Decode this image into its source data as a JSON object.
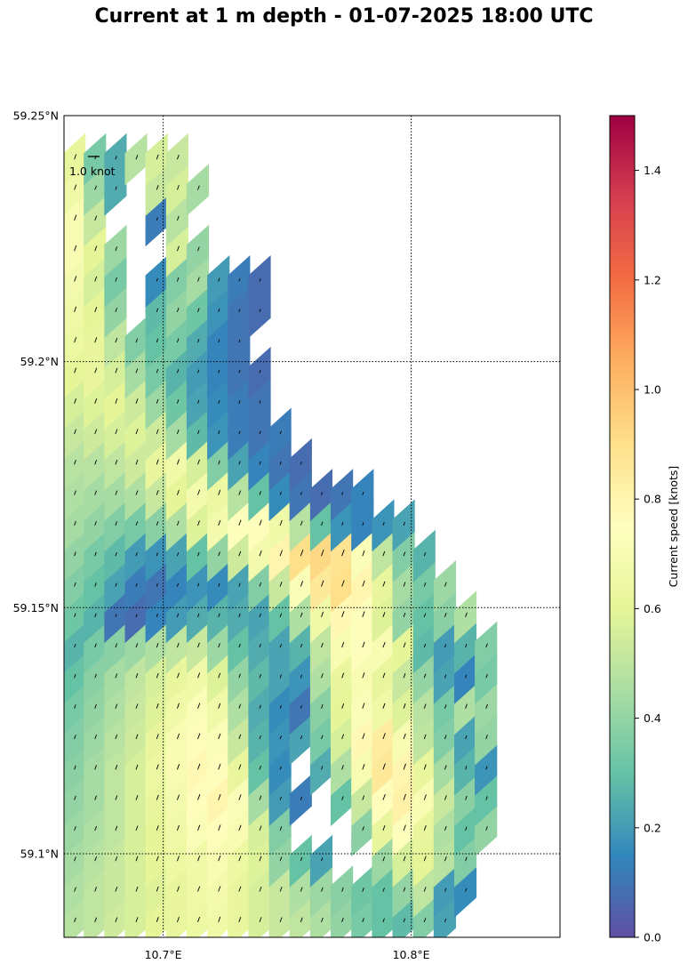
{
  "chart_data": {
    "type": "heatmap",
    "title": "Current at 1 m depth - 01-07-2025 18:00 UTC",
    "xlim": [
      10.66,
      10.86
    ],
    "ylim": [
      59.083,
      59.25
    ],
    "x_ticks": [
      {
        "value": 10.7,
        "label": "10.7°E"
      },
      {
        "value": 10.8,
        "label": "10.8°E"
      }
    ],
    "y_ticks": [
      {
        "value": 59.1,
        "label": "59.1°N"
      },
      {
        "value": 59.15,
        "label": "59.15°N"
      },
      {
        "value": 59.2,
        "label": "59.2°N"
      },
      {
        "value": 59.25,
        "label": "59.25°N"
      }
    ],
    "grid": true,
    "grid_style": "dotted",
    "quiver_key": {
      "label": "1.0 knot",
      "value": 1.0
    },
    "colorbar": {
      "label": "Current speed [knots]",
      "range": [
        0,
        1.5
      ],
      "ticks": [
        0.0,
        0.2,
        0.4,
        0.6,
        0.8,
        1.0,
        1.2,
        1.4
      ],
      "tick_labels": [
        "0.0",
        "0.2",
        "0.4",
        "0.6",
        "0.8",
        "1.0",
        "1.2",
        "1.4"
      ],
      "colormap": "Spectral_r"
    },
    "grid_cells": {
      "lon_start": 10.66,
      "lon_step": 0.0083,
      "lat_start": 59.083,
      "lat_step": 0.0062,
      "rows_bottom_to_top": [
        [
          0.48,
          0.5,
          0.54,
          0.56,
          0.6,
          0.62,
          0.64,
          0.66,
          0.62,
          0.56,
          0.52,
          0.5,
          0.46,
          0.4,
          0.34,
          0.3,
          0.28,
          0.36,
          0.22,
          null,
          null,
          null,
          null,
          null,
          null
        ],
        [
          0.46,
          0.5,
          0.52,
          0.56,
          0.58,
          0.62,
          0.66,
          0.68,
          0.62,
          0.56,
          0.52,
          0.46,
          0.42,
          0.38,
          0.32,
          0.3,
          0.4,
          0.5,
          0.2,
          0.16,
          null,
          null,
          null,
          null,
          null
        ],
        [
          0.44,
          0.48,
          0.52,
          0.56,
          0.6,
          0.64,
          0.66,
          0.7,
          0.64,
          0.58,
          0.4,
          0.3,
          0.22,
          null,
          null,
          0.42,
          0.56,
          0.6,
          0.48,
          0.36,
          null,
          null,
          null,
          null,
          null
        ],
        [
          0.42,
          0.46,
          0.5,
          0.56,
          0.6,
          0.66,
          0.72,
          0.76,
          0.7,
          0.56,
          0.36,
          null,
          null,
          null,
          0.38,
          0.62,
          0.74,
          0.62,
          0.46,
          0.3,
          0.4,
          null,
          null,
          null,
          null
        ],
        [
          0.4,
          0.44,
          0.5,
          0.56,
          0.62,
          0.68,
          0.76,
          0.8,
          0.72,
          0.44,
          0.2,
          0.12,
          null,
          0.3,
          0.52,
          0.76,
          0.82,
          0.7,
          0.52,
          0.38,
          0.3,
          null,
          null,
          null,
          null
        ],
        [
          0.38,
          0.44,
          0.5,
          0.56,
          0.64,
          0.7,
          0.78,
          0.76,
          0.62,
          0.3,
          0.16,
          null,
          0.24,
          0.46,
          0.7,
          0.86,
          0.8,
          0.62,
          0.44,
          0.26,
          0.18,
          null,
          null,
          null,
          null
        ],
        [
          0.36,
          0.42,
          0.48,
          0.54,
          0.62,
          0.7,
          0.76,
          0.72,
          0.52,
          0.26,
          0.18,
          0.22,
          0.34,
          0.56,
          0.78,
          0.84,
          0.7,
          0.5,
          0.36,
          0.22,
          0.4,
          null,
          null,
          null,
          null
        ],
        [
          0.34,
          0.4,
          0.46,
          0.52,
          0.58,
          0.66,
          0.72,
          0.66,
          0.46,
          0.24,
          0.16,
          0.1,
          0.38,
          0.6,
          0.72,
          0.66,
          0.58,
          0.48,
          0.34,
          0.46,
          0.42,
          null,
          null,
          null,
          null
        ],
        [
          0.3,
          0.38,
          0.44,
          0.5,
          0.56,
          0.62,
          0.66,
          0.58,
          0.4,
          0.28,
          0.22,
          0.18,
          0.46,
          0.62,
          0.7,
          0.62,
          0.52,
          0.4,
          0.22,
          0.14,
          0.34,
          null,
          null,
          null,
          null
        ],
        [
          0.26,
          0.34,
          0.38,
          0.42,
          0.46,
          0.5,
          0.52,
          0.42,
          0.3,
          0.24,
          0.22,
          0.26,
          0.5,
          0.7,
          0.74,
          0.7,
          0.6,
          0.28,
          0.2,
          0.26,
          0.36,
          null,
          null,
          null,
          null
        ],
        [
          0.32,
          0.26,
          0.1,
          0.08,
          0.14,
          0.2,
          0.24,
          0.26,
          0.24,
          0.22,
          0.3,
          0.46,
          0.66,
          0.78,
          0.74,
          0.58,
          0.4,
          0.3,
          0.38,
          0.46,
          null,
          null,
          null,
          null,
          null
        ],
        [
          0.36,
          0.3,
          0.22,
          0.12,
          0.1,
          0.14,
          0.18,
          0.16,
          0.22,
          0.36,
          0.52,
          0.72,
          0.86,
          0.9,
          0.8,
          0.62,
          0.44,
          0.34,
          0.42,
          null,
          null,
          null,
          null,
          null,
          null
        ],
        [
          0.4,
          0.34,
          0.28,
          0.2,
          0.18,
          0.22,
          0.3,
          0.4,
          0.54,
          0.68,
          0.8,
          0.9,
          0.92,
          0.88,
          0.72,
          0.5,
          0.36,
          0.26,
          null,
          null,
          null,
          null,
          null,
          null,
          null
        ],
        [
          0.44,
          0.4,
          0.36,
          0.34,
          0.38,
          0.46,
          0.58,
          0.68,
          0.74,
          0.76,
          0.66,
          0.48,
          0.3,
          0.18,
          0.14,
          0.18,
          0.22,
          null,
          null,
          null,
          null,
          null,
          null,
          null,
          null
        ],
        [
          0.46,
          0.44,
          0.44,
          0.46,
          0.52,
          0.6,
          0.68,
          0.64,
          0.48,
          0.3,
          0.16,
          0.1,
          0.08,
          0.1,
          0.14,
          null,
          null,
          null,
          null,
          null,
          null,
          null,
          null,
          null,
          null
        ],
        [
          0.48,
          0.48,
          0.5,
          0.54,
          0.62,
          0.66,
          0.56,
          0.36,
          0.22,
          0.14,
          0.1,
          0.08,
          null,
          null,
          null,
          null,
          null,
          null,
          null,
          null,
          null,
          null,
          null,
          null,
          null
        ],
        [
          0.52,
          0.54,
          0.56,
          0.58,
          0.54,
          0.44,
          0.28,
          0.18,
          0.12,
          0.1,
          0.12,
          null,
          null,
          null,
          null,
          null,
          null,
          null,
          null,
          null,
          null,
          null,
          null,
          null,
          null
        ],
        [
          0.56,
          0.58,
          0.6,
          0.54,
          0.42,
          0.32,
          0.22,
          0.16,
          0.12,
          0.1,
          null,
          null,
          null,
          null,
          null,
          null,
          null,
          null,
          null,
          null,
          null,
          null,
          null,
          null,
          null
        ],
        [
          0.6,
          0.62,
          0.56,
          0.44,
          0.34,
          0.26,
          0.2,
          0.14,
          0.1,
          0.08,
          null,
          null,
          null,
          null,
          null,
          null,
          null,
          null,
          null,
          null,
          null,
          null,
          null,
          null,
          null
        ],
        [
          0.64,
          0.62,
          0.5,
          0.36,
          0.3,
          0.34,
          0.24,
          0.14,
          0.1,
          null,
          null,
          null,
          null,
          null,
          null,
          null,
          null,
          null,
          null,
          null,
          null,
          null,
          null,
          null,
          null
        ],
        [
          0.66,
          0.6,
          0.4,
          null,
          0.28,
          0.4,
          0.32,
          0.18,
          0.1,
          0.08,
          null,
          null,
          null,
          null,
          null,
          null,
          null,
          null,
          null,
          null,
          null,
          null,
          null,
          null,
          null
        ],
        [
          0.68,
          0.56,
          0.34,
          null,
          0.16,
          0.36,
          0.44,
          0.2,
          0.12,
          0.08,
          null,
          null,
          null,
          null,
          null,
          null,
          null,
          null,
          null,
          null,
          null,
          null,
          null,
          null,
          null
        ],
        [
          0.7,
          0.6,
          0.42,
          null,
          null,
          0.56,
          0.4,
          null,
          null,
          null,
          null,
          null,
          null,
          null,
          null,
          null,
          null,
          null,
          null,
          null,
          null,
          null,
          null,
          null,
          null
        ],
        [
          0.7,
          0.52,
          null,
          null,
          0.12,
          0.48,
          null,
          null,
          null,
          null,
          null,
          null,
          null,
          null,
          null,
          null,
          null,
          null,
          null,
          null,
          null,
          null,
          null,
          null,
          null
        ],
        [
          0.66,
          0.42,
          0.24,
          null,
          0.52,
          0.56,
          0.44,
          null,
          null,
          null,
          null,
          null,
          null,
          null,
          null,
          null,
          null,
          null,
          null,
          null,
          null,
          null,
          null,
          null,
          null
        ],
        [
          0.62,
          0.34,
          0.24,
          0.48,
          0.56,
          0.52,
          null,
          null,
          null,
          null,
          null,
          null,
          null,
          null,
          null,
          null,
          null,
          null,
          null,
          null,
          null,
          null,
          null,
          null,
          null
        ]
      ]
    }
  }
}
